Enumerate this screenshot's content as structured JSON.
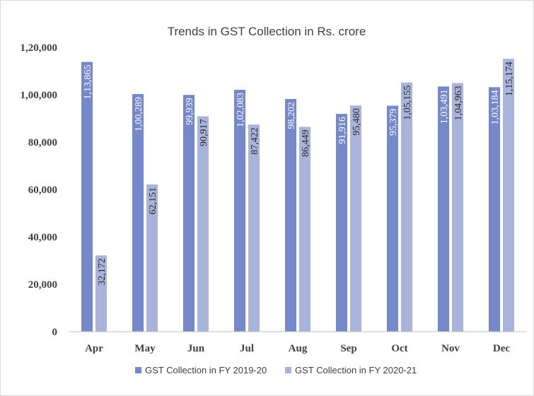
{
  "chart_data": {
    "type": "bar",
    "title": "Trends in GST Collection in Rs. crore",
    "xlabel": "",
    "ylabel": "",
    "categories": [
      "Apr",
      "May",
      "Jun",
      "Jul",
      "Aug",
      "Sep",
      "Oct",
      "Nov",
      "Dec"
    ],
    "ylim": [
      0,
      120000
    ],
    "yticks": [
      0,
      20000,
      40000,
      60000,
      80000,
      100000,
      120000
    ],
    "ytick_labels": [
      "0",
      "20,000",
      "40,000",
      "60,000",
      "80,000",
      "1,00,000",
      "1,20,000"
    ],
    "grid": false,
    "legend_position": "bottom",
    "series": [
      {
        "name": "GST Collection in FY 2019-20",
        "color": "#7588cc",
        "values": [
          113865,
          100289,
          99939,
          102083,
          98202,
          91916,
          95379,
          103491,
          103184
        ],
        "labels": [
          "1,13,865",
          "1,00,289",
          "99,939",
          "1,02,083",
          "98,202",
          "91,916",
          "95,379",
          "1,03,491",
          "1,03,184"
        ],
        "label_color": "#ffffff"
      },
      {
        "name": "GST Collection in FY 2020-21",
        "color": "#a9b4dc",
        "values": [
          32172,
          62151,
          90917,
          87422,
          86449,
          95480,
          105155,
          104963,
          115174
        ],
        "labels": [
          "32,172",
          "62,151",
          "90,917",
          "87,422",
          "86,449",
          "95,480",
          "1,05,155",
          "1,04,963",
          "1,15,174"
        ],
        "label_color": "#262626"
      }
    ]
  }
}
